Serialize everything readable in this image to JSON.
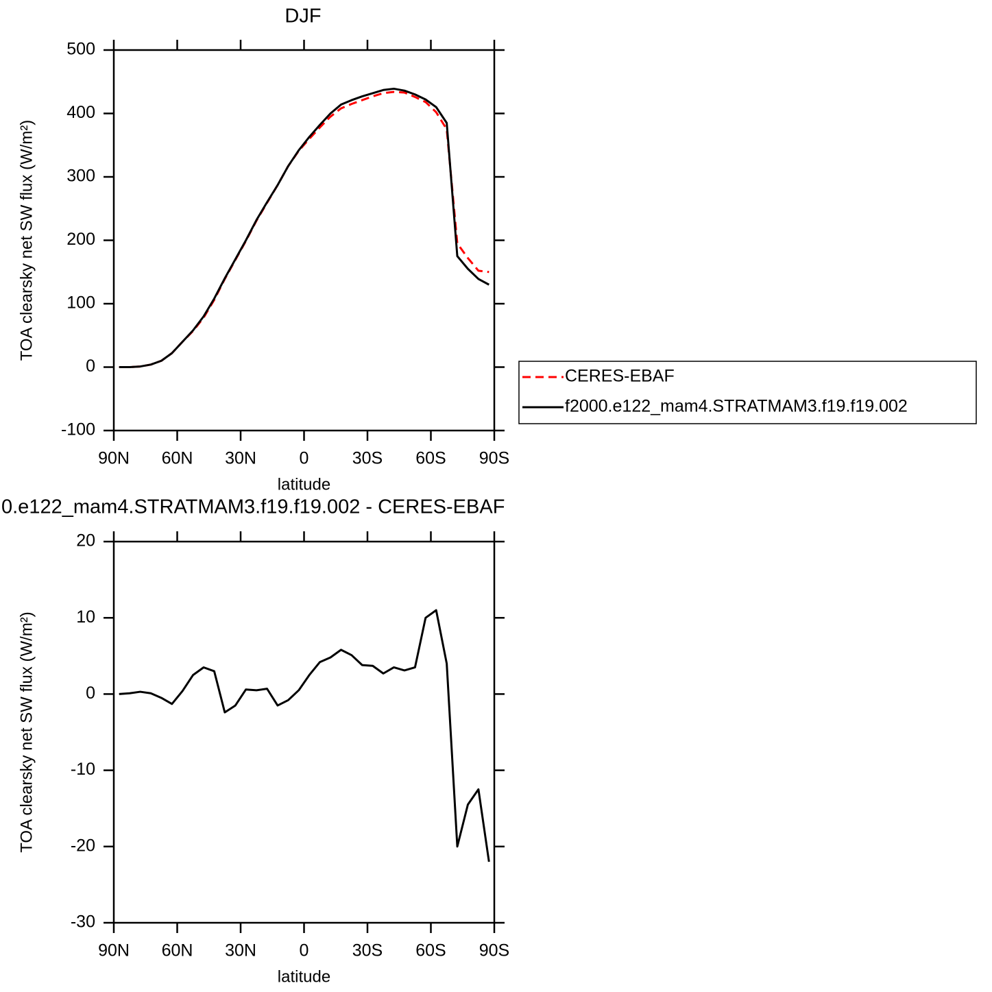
{
  "chart_data": [
    {
      "type": "line",
      "title": "DJF",
      "xlabel": "latitude",
      "ylabel": "TOA clearsky net SW flux (W/m²)",
      "x": [
        87.5,
        82.5,
        77.5,
        72.5,
        67.5,
        62.5,
        57.5,
        52.5,
        47.5,
        42.5,
        37.5,
        32.5,
        27.5,
        22.5,
        17.5,
        12.5,
        7.5,
        2.5,
        -2.5,
        -7.5,
        -12.5,
        -17.5,
        -22.5,
        -27.5,
        -32.5,
        -37.5,
        -42.5,
        -47.5,
        -52.5,
        -57.5,
        -62.5,
        -67.5,
        -72.5,
        -77.5,
        -82.5,
        -87.5
      ],
      "series": [
        {
          "name": "CERES-EBAF",
          "color": "#ff0000",
          "linestyle": "dashed",
          "values": [
            0,
            0,
            1,
            4,
            10,
            22,
            40,
            57,
            78,
            106,
            139,
            169,
            199,
            231,
            259,
            287,
            317,
            341,
            360,
            378,
            395,
            408,
            415,
            421,
            427,
            432,
            434,
            433,
            426,
            418,
            402,
            375,
            195,
            172,
            152,
            150
          ]
        },
        {
          "name": "f2000.e122_mam4.STRATMAM3.f19.f19.002",
          "color": "#000000",
          "linestyle": "solid",
          "values": [
            0,
            0,
            1,
            4,
            10,
            22,
            40,
            58,
            80,
            108,
            140,
            170,
            200,
            232,
            260,
            287,
            317,
            342,
            363,
            382,
            400,
            414,
            421,
            427,
            432,
            437,
            439,
            436,
            430,
            422,
            410,
            385,
            175,
            155,
            139,
            130
          ]
        }
      ],
      "xlim": [
        90,
        -90
      ],
      "xticks": [
        {
          "value": 90,
          "label": "90N"
        },
        {
          "value": 60,
          "label": "60N"
        },
        {
          "value": 30,
          "label": "30N"
        },
        0,
        {
          "value": -30,
          "label": "30S"
        },
        {
          "value": -60,
          "label": "60S"
        },
        {
          "value": -90,
          "label": "90S"
        }
      ],
      "ylim": [
        -100,
        500
      ],
      "yticks": [
        -100,
        0,
        100,
        200,
        300,
        400,
        500
      ],
      "legend": "right"
    },
    {
      "type": "line",
      "title": "0.e122_mam4.STRATMAM3.f19.f19.002 - CERES-EBAF",
      "xlabel": "latitude",
      "ylabel": "TOA clearsky net SW flux (W/m²)",
      "x": [
        87.5,
        82.5,
        77.5,
        72.5,
        67.5,
        62.5,
        57.5,
        52.5,
        47.5,
        42.5,
        37.5,
        32.5,
        27.5,
        22.5,
        17.5,
        12.5,
        7.5,
        2.5,
        -2.5,
        -7.5,
        -12.5,
        -17.5,
        -22.5,
        -27.5,
        -32.5,
        -37.5,
        -42.5,
        -47.5,
        -52.5,
        -57.5,
        -62.5,
        -67.5,
        -72.5,
        -77.5,
        -82.5,
        -87.5
      ],
      "values": [
        0,
        0.1,
        0.3,
        0.1,
        -0.5,
        -1.3,
        0.4,
        2.5,
        3.5,
        3,
        -2.4,
        -1.5,
        0.6,
        0.5,
        0.7,
        -1.5,
        -0.8,
        0.5,
        2.5,
        4.2,
        4.8,
        5.8,
        5.1,
        3.8,
        3.7,
        2.7,
        3.5,
        3.1,
        3.5,
        10,
        11,
        4,
        -20,
        -14.5,
        -12.5,
        -22
      ],
      "color": "#000000",
      "xlim": [
        90,
        -90
      ],
      "xticks": [
        {
          "value": 90,
          "label": "90N"
        },
        {
          "value": 60,
          "label": "60N"
        },
        {
          "value": 30,
          "label": "30N"
        },
        0,
        {
          "value": -30,
          "label": "30S"
        },
        {
          "value": -60,
          "label": "60S"
        },
        {
          "value": -90,
          "label": "90S"
        }
      ],
      "ylim": [
        -30,
        20
      ],
      "yticks": [
        -30,
        -20,
        -10,
        0,
        10,
        20
      ]
    }
  ]
}
